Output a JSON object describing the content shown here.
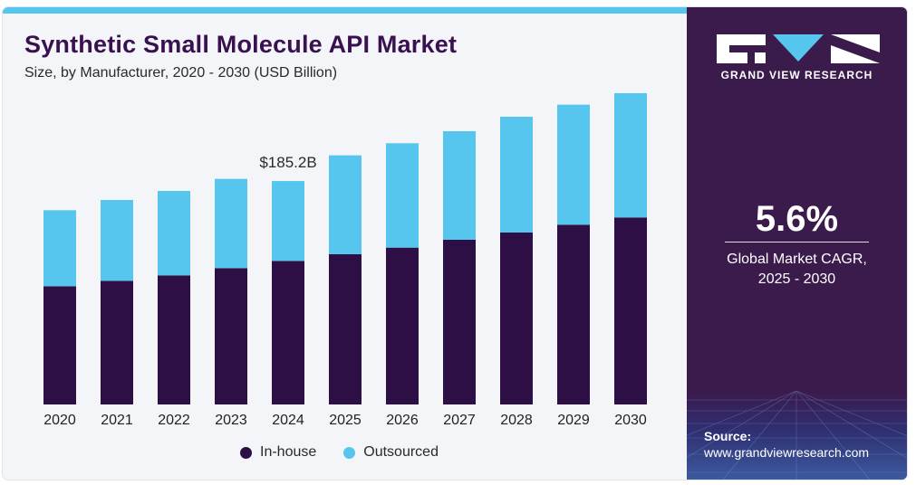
{
  "header": {
    "title": "Synthetic Small Molecule API Market",
    "subtitle": "Size, by Manufacturer, 2020 - 2030 (USD Billion)"
  },
  "colors": {
    "inhouse": "#2e0f45",
    "outsourced": "#56c6ef",
    "accent_panel": "#3b1a4c"
  },
  "chart_data": {
    "type": "bar",
    "stacked": true,
    "categories": [
      "2020",
      "2021",
      "2022",
      "2023",
      "2024",
      "2025",
      "2026",
      "2027",
      "2028",
      "2029",
      "2030"
    ],
    "series": [
      {
        "name": "In-house",
        "values": [
          98.0,
          102.5,
          107.0,
          113.0,
          119.0,
          124.5,
          130.0,
          136.5,
          142.5,
          149.0,
          155.0
        ]
      },
      {
        "name": "Outsourced",
        "values": [
          63.0,
          67.0,
          70.0,
          74.0,
          66.2,
          82.0,
          86.5,
          90.0,
          96.0,
          99.5,
          103.0
        ]
      }
    ],
    "annotation": {
      "category": "2024",
      "text": "$185.2B"
    },
    "legend_position": "bottom",
    "grid": false,
    "ylim": [
      0,
      270
    ]
  },
  "legend": {
    "items": [
      {
        "label": "In-house",
        "color": "#2e0f45"
      },
      {
        "label": "Outsourced",
        "color": "#56c6ef"
      }
    ]
  },
  "sidebar": {
    "brand": "GRAND VIEW RESEARCH",
    "cagr_value": "5.6%",
    "cagr_label_line1": "Global Market CAGR,",
    "cagr_label_line2": "2025 - 2030",
    "source_title": "Source:",
    "source_url": "www.grandviewresearch.com"
  }
}
